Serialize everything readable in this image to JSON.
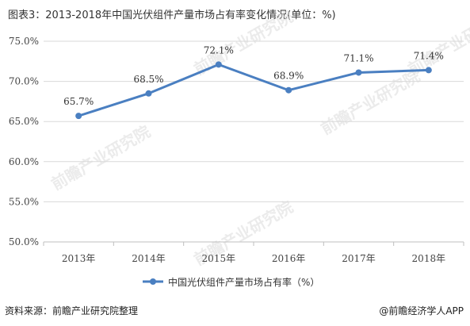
{
  "title": "图表3：2013-2018年中国光伏组件产量市场占有率变化情况(单位：%)",
  "source": "资料来源：前瞻产业研究院整理",
  "brand": "@前瞻经济学人APP",
  "watermark": "前瞻产业研究院",
  "colors": {
    "line": "#4a7fc1",
    "grid": "#d9d9d9",
    "axis": "#bfbfbf"
  },
  "chart_data": {
    "type": "line",
    "categories": [
      "2013年",
      "2014年",
      "2015年",
      "2016年",
      "2017年",
      "2018年"
    ],
    "series": [
      {
        "name": "中国光伏组件产量市场占有率（%）",
        "values": [
          65.7,
          68.5,
          72.1,
          68.9,
          71.1,
          71.4
        ],
        "labels": [
          "65.7%",
          "68.5%",
          "72.1%",
          "68.9%",
          "71.1%",
          "71.4%"
        ]
      }
    ],
    "ylim": [
      50,
      75
    ],
    "yticks": [
      50,
      55,
      60,
      65,
      70,
      75
    ],
    "ytick_labels": [
      "50.0%",
      "55.0%",
      "60.0%",
      "65.0%",
      "70.0%",
      "75.0%"
    ],
    "grid": true,
    "legend": "bottom"
  }
}
